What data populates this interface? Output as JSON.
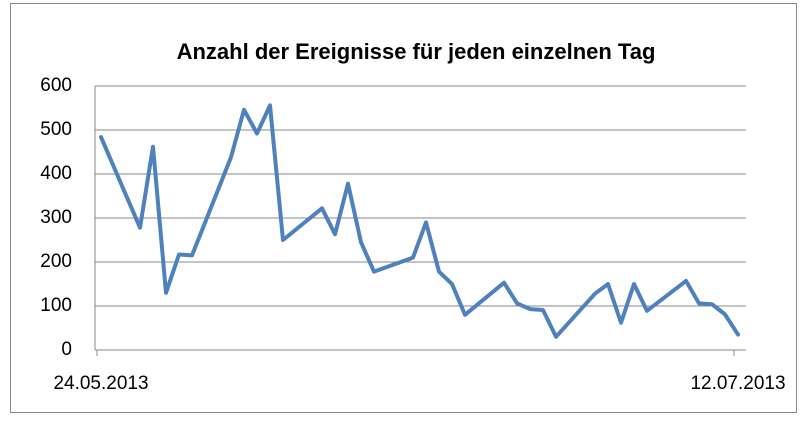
{
  "chart_data": {
    "type": "line",
    "title": "Anzahl der Ereignisse für jeden einzelnen Tag",
    "categories": [
      "24.05.2013",
      null,
      null,
      null,
      null,
      null,
      null,
      null,
      null,
      null,
      null,
      null,
      null,
      null,
      null,
      null,
      null,
      null,
      null,
      null,
      null,
      null,
      null,
      null,
      null,
      null,
      null,
      null,
      null,
      null,
      null,
      null,
      null,
      null,
      null,
      null,
      null,
      null,
      null,
      null,
      null,
      null,
      null,
      null,
      null,
      null,
      null,
      null,
      null,
      "12.07.2013"
    ],
    "series": [
      {
        "name": "Ereignisse",
        "color": "#4f81bd",
        "values": [
          484,
          null,
          null,
          278,
          462,
          130,
          217,
          215,
          null,
          null,
          438,
          546,
          492,
          556,
          250,
          null,
          null,
          322,
          263,
          378,
          245,
          178,
          null,
          null,
          210,
          290,
          178,
          150,
          80,
          null,
          null,
          153,
          106,
          93,
          91,
          30,
          null,
          null,
          128,
          150,
          62,
          150,
          89,
          null,
          null,
          157,
          106,
          104,
          81,
          35
        ]
      }
    ],
    "span_gaps": true,
    "ylim": [
      0,
      600
    ],
    "yticks": [
      0,
      100,
      200,
      300,
      400,
      500,
      600
    ],
    "grid": true,
    "legend": false
  }
}
